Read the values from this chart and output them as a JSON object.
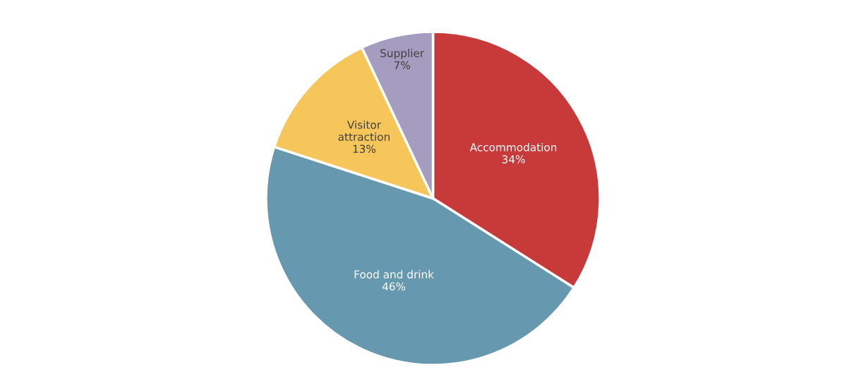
{
  "chart_data": {
    "type": "pie",
    "categories": [
      "Accommodation",
      "Food and drink",
      "Visitor attraction",
      "Supplier"
    ],
    "values": [
      34,
      46,
      13,
      7
    ],
    "colors": [
      "#c83a3a",
      "#6699b0",
      "#f7c65a",
      "#a59dc0"
    ],
    "value_labels": [
      "34%",
      "46%",
      "13%",
      "7%"
    ],
    "legend": false
  }
}
